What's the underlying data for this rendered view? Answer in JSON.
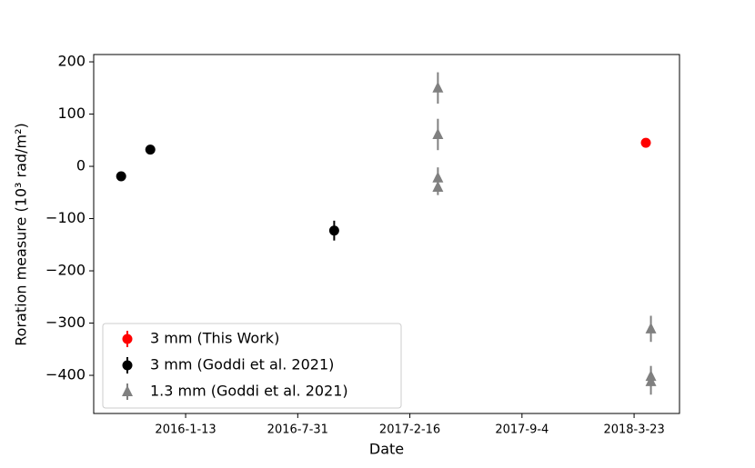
{
  "chart_data": {
    "type": "errorbar-scatter",
    "x_label": "Date",
    "y_label": "Roration measure (10³ rad/m²)",
    "xlim": [
      "2015-08-02",
      "2018-06-12"
    ],
    "xticks": [
      {
        "value": "2016-01-13",
        "label": "2016-1-13"
      },
      {
        "value": "2016-07-31",
        "label": "2016-7-31"
      },
      {
        "value": "2017-02-16",
        "label": "2017-2-16"
      },
      {
        "value": "2017-09-04",
        "label": "2017-9-4"
      },
      {
        "value": "2018-03-23",
        "label": "2018-3-23"
      }
    ],
    "ylim": [
      -473,
      214
    ],
    "yticks": [
      {
        "value": -400,
        "label": "−400"
      },
      {
        "value": -300,
        "label": "−300"
      },
      {
        "value": -200,
        "label": "−200"
      },
      {
        "value": -100,
        "label": "−100"
      },
      0,
      100,
      200
    ],
    "legend": "lower left",
    "series": [
      {
        "name": "3 mm (This Work)",
        "color": "#ff0000",
        "marker": "circle",
        "x": [
          "2018-04-13"
        ],
        "values": [
          45
        ],
        "errors": [
          5
        ]
      },
      {
        "name": "3 mm (Goddi et al. 2021)",
        "color": "#000000",
        "marker": "circle",
        "x": [
          "2015-09-20",
          "2015-11-11",
          "2016-10-04"
        ],
        "values": [
          -19,
          32,
          -123
        ],
        "errors": [
          3,
          3,
          19
        ]
      },
      {
        "name": "1.3 mm (Goddi et al. 2021)",
        "color": "#808080",
        "marker": "triangle",
        "x": [
          "2017-04-07",
          "2017-04-07",
          "2017-04-07",
          "2017-04-07",
          "2018-04-22",
          "2018-04-22",
          "2018-04-22"
        ],
        "values": [
          150,
          61,
          -22,
          -40,
          -311,
          -402,
          -412
        ],
        "errors": [
          30,
          30,
          20,
          15,
          25,
          20,
          25
        ]
      }
    ]
  }
}
